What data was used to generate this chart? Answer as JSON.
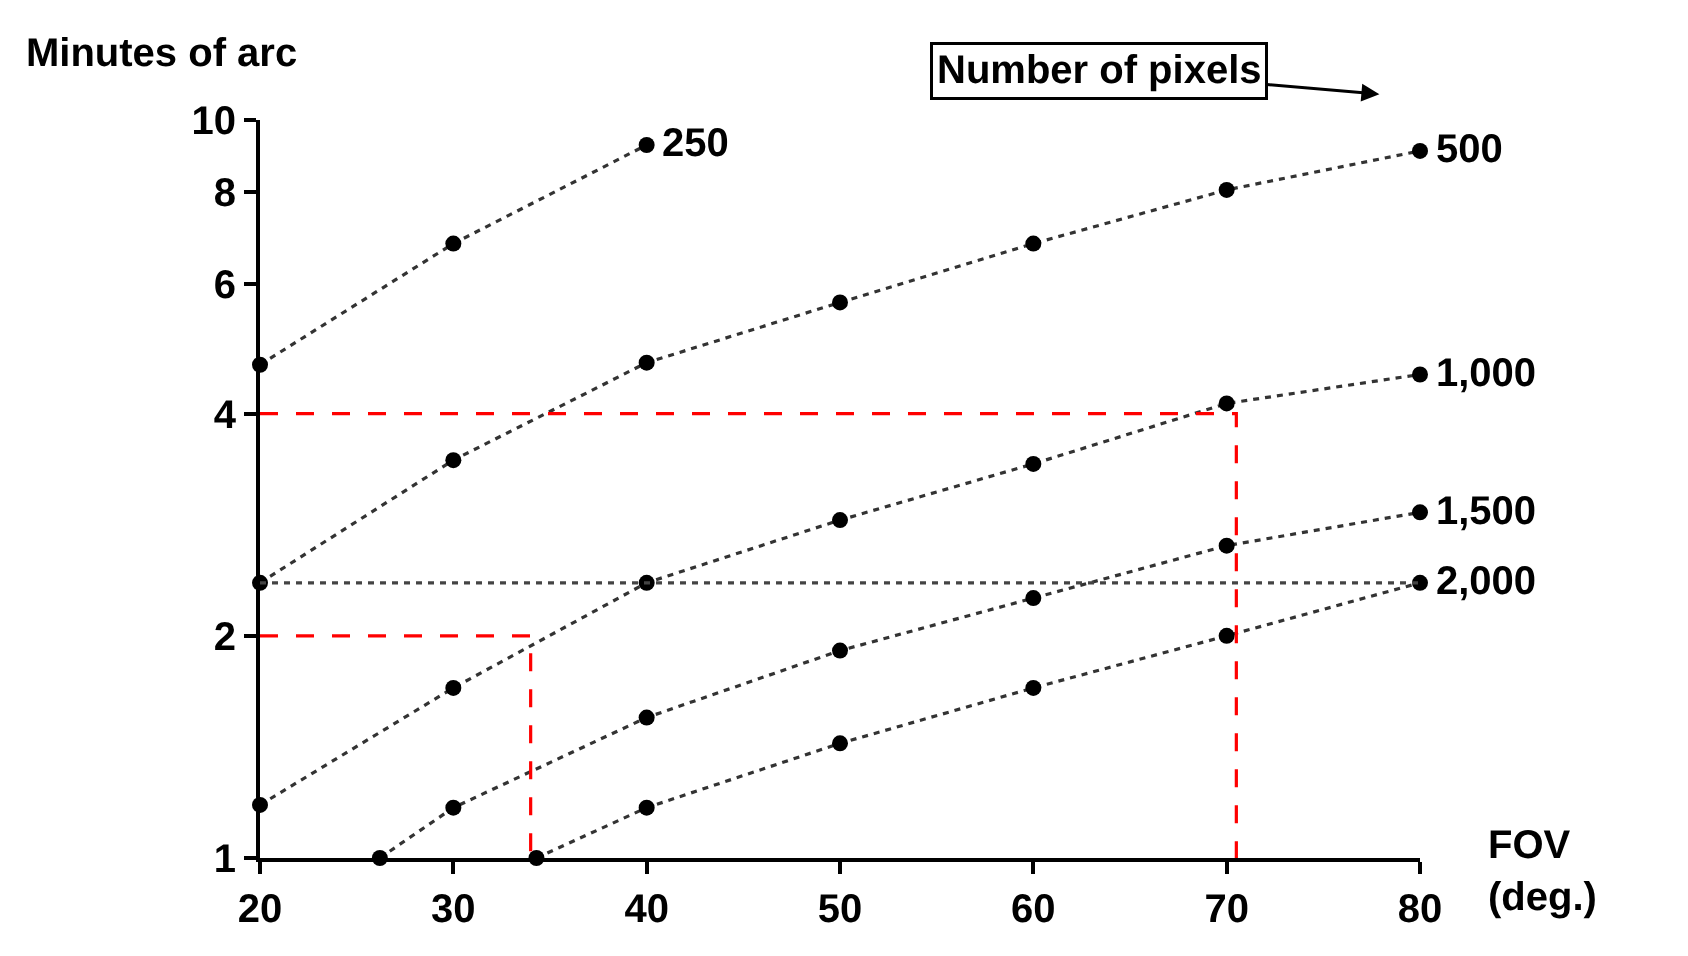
{
  "chart_data": {
    "type": "line",
    "xlabel": "FOV (deg.)",
    "ylabel": "Minutes of arc",
    "annotations": [
      "Number of pixels"
    ],
    "xlim": [
      20,
      80
    ],
    "xticks": [
      20,
      30,
      40,
      50,
      60,
      70,
      80
    ],
    "ylim": [
      1,
      10
    ],
    "yticks": [
      1,
      2,
      4,
      6,
      8,
      10
    ],
    "log": "y",
    "marker": "circle",
    "line_style": "dotted",
    "series": [
      {
        "name": "250",
        "color": "#333333",
        "x": [
          20,
          30,
          40
        ],
        "values": [
          4.66,
          6.8,
          9.25
        ]
      },
      {
        "name": "500",
        "color": "#333333",
        "x": [
          20,
          30,
          40,
          50,
          60,
          70,
          80
        ],
        "values": [
          2.36,
          3.46,
          4.69,
          5.66,
          6.8,
          8.04,
          9.08
        ]
      },
      {
        "name": "1,000",
        "color": "#333333",
        "x": [
          20,
          30,
          40,
          50,
          60,
          70,
          80
        ],
        "values": [
          1.18,
          1.7,
          2.36,
          2.87,
          3.42,
          4.13,
          4.52
        ]
      },
      {
        "name": "1,500",
        "color": "#333333",
        "x": [
          26.2,
          30,
          40,
          50,
          60,
          70,
          80
        ],
        "values": [
          1.0,
          1.17,
          1.55,
          1.91,
          2.25,
          2.65,
          2.94
        ]
      },
      {
        "name": "2,000",
        "color": "#333333",
        "x": [
          34.3,
          40,
          50,
          60,
          70,
          80
        ],
        "values": [
          1.0,
          1.17,
          1.43,
          1.7,
          2.0,
          2.36
        ]
      },
      {
        "type": "line",
        "color": "#444444",
        "marker": "none",
        "line_style": "dotted",
        "x": [
          20,
          80
        ],
        "values": [
          2.36,
          2.36
        ]
      },
      {
        "type": "line",
        "color": "#ff0000",
        "marker": "none",
        "line_style": "dashed",
        "x": [
          20,
          70.5,
          70.5
        ],
        "values": [
          4,
          4,
          1
        ]
      },
      {
        "type": "line",
        "color": "#ff0000",
        "marker": "none",
        "line_style": "dashed",
        "x": [
          20,
          34,
          34
        ],
        "values": [
          2,
          2,
          1
        ]
      }
    ]
  }
}
